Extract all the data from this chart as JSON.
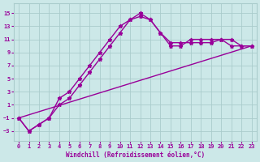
{
  "background_color": "#cce8e8",
  "grid_color": "#aacccc",
  "line_color": "#990099",
  "xlabel": "Windchill (Refroidissement éolien,°C)",
  "xlim": [
    -0.5,
    23.5
  ],
  "ylim": [
    -4.5,
    16.5
  ],
  "yticks": [
    -3,
    -1,
    1,
    3,
    5,
    7,
    9,
    11,
    13,
    15
  ],
  "xticks": [
    0,
    1,
    2,
    3,
    4,
    5,
    6,
    7,
    8,
    9,
    10,
    11,
    12,
    13,
    14,
    15,
    16,
    17,
    18,
    19,
    20,
    21,
    22,
    23
  ],
  "line1_x": [
    0,
    1,
    2,
    3,
    4,
    5,
    6,
    7,
    8,
    9,
    10,
    11,
    12,
    13,
    14,
    15,
    16,
    17,
    18,
    19,
    20,
    21,
    22,
    23
  ],
  "line1_y": [
    -1,
    -3,
    -2,
    -1,
    1,
    2,
    4,
    6,
    8,
    10,
    12,
    14,
    15,
    14,
    12,
    10,
    10,
    11,
    11,
    11,
    11,
    11,
    10,
    10
  ],
  "line2_x": [
    0,
    1,
    2,
    3,
    4,
    5,
    6,
    7,
    8,
    9,
    10,
    11,
    12,
    13,
    14,
    15,
    16,
    17,
    18,
    19,
    20,
    21,
    22,
    23
  ],
  "line2_y": [
    -1,
    -3,
    -2,
    -1,
    2,
    3,
    5,
    7,
    9,
    11,
    13,
    14,
    14.5,
    14,
    12,
    10.5,
    10.5,
    10.5,
    10.5,
    10.5,
    11,
    10,
    10,
    10
  ],
  "line3_x": [
    0,
    23
  ],
  "line3_y": [
    -1,
    10
  ]
}
